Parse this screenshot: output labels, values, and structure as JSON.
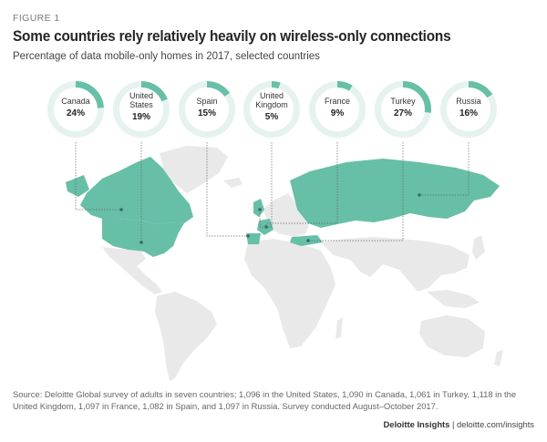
{
  "header": {
    "figure_label": "FIGURE 1",
    "title": "Some countries rely relatively heavily on wireless-only connections",
    "subtitle": "Percentage of data mobile-only homes in 2017, selected countries"
  },
  "colors": {
    "ring_track": "#e6f2ef",
    "ring_fill": "#67bfa8",
    "land_highlight": "#67bfa8",
    "land_base": "#e9e9e9",
    "leader_line": "#666666"
  },
  "chart_data": {
    "type": "donut",
    "unit": "%",
    "countries": [
      {
        "name_lines": [
          "Canada"
        ],
        "value": 24,
        "label": "24%"
      },
      {
        "name_lines": [
          "United",
          "States"
        ],
        "value": 19,
        "label": "19%"
      },
      {
        "name_lines": [
          "Spain"
        ],
        "value": 15,
        "label": "15%"
      },
      {
        "name_lines": [
          "United",
          "Kingdom"
        ],
        "value": 5,
        "label": "5%"
      },
      {
        "name_lines": [
          "France"
        ],
        "value": 9,
        "label": "9%"
      },
      {
        "name_lines": [
          "Turkey"
        ],
        "value": 27,
        "label": "27%"
      },
      {
        "name_lines": [
          "Russia"
        ],
        "value": 16,
        "label": "16%"
      }
    ]
  },
  "footer": {
    "source": "Source: Deloitte Global survey of adults in seven countries; 1,096 in the United States, 1,090 in Canada, 1,061 in Turkey, 1,118 in the United Kingdom, 1,097 in France, 1,082 in Spain, and 1,097 in Russia. Survey conducted August–October 2017.",
    "brand": "Deloitte Insights",
    "separator": " | ",
    "url": "deloitte.com/insights"
  }
}
